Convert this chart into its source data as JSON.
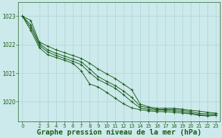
{
  "background_color": "#cce9eb",
  "grid_color": "#aad4d8",
  "line_color": "#1a5c1a",
  "xlabel": "Graphe pression niveau de la mer (hPa)",
  "xlabel_fontsize": 7.5,
  "xlim": [
    -0.5,
    23.5
  ],
  "ylim": [
    1019.3,
    1023.5
  ],
  "yticks": [
    1020,
    1021,
    1022,
    1023
  ],
  "xticks": [
    0,
    2,
    3,
    4,
    5,
    6,
    7,
    8,
    9,
    10,
    11,
    12,
    13,
    14,
    15,
    16,
    17,
    18,
    19,
    20,
    21,
    22,
    23
  ],
  "series": [
    [
      1023.0,
      1022.85,
      1022.1,
      1021.95,
      1021.82,
      1021.72,
      1021.62,
      1021.52,
      1021.35,
      1021.15,
      1020.98,
      1020.82,
      1020.62,
      1020.42,
      1019.92,
      1019.82,
      1019.77,
      1019.77,
      1019.77,
      1019.74,
      1019.7,
      1019.67,
      1019.63,
      1019.6
    ],
    [
      1023.0,
      1022.7,
      1022.05,
      1021.82,
      1021.7,
      1021.6,
      1021.5,
      1021.4,
      1021.15,
      1020.88,
      1020.72,
      1020.57,
      1020.38,
      1020.15,
      1019.85,
      1019.78,
      1019.73,
      1019.73,
      1019.73,
      1019.7,
      1019.65,
      1019.6,
      1019.57,
      1019.57
    ],
    [
      1023.0,
      1022.6,
      1021.98,
      1021.75,
      1021.62,
      1021.52,
      1021.42,
      1021.3,
      1021.02,
      1020.78,
      1020.63,
      1020.48,
      1020.25,
      1020.0,
      1019.78,
      1019.73,
      1019.7,
      1019.7,
      1019.68,
      1019.65,
      1019.6,
      1019.55,
      1019.52,
      1019.53
    ],
    [
      1023.0,
      1022.5,
      1021.9,
      1021.65,
      1021.55,
      1021.45,
      1021.35,
      1021.08,
      1020.62,
      1020.52,
      1020.33,
      1020.13,
      1019.93,
      1019.78,
      1019.72,
      1019.68,
      1019.65,
      1019.65,
      1019.63,
      1019.6,
      1019.57,
      1019.52,
      1019.5,
      1019.52
    ]
  ]
}
